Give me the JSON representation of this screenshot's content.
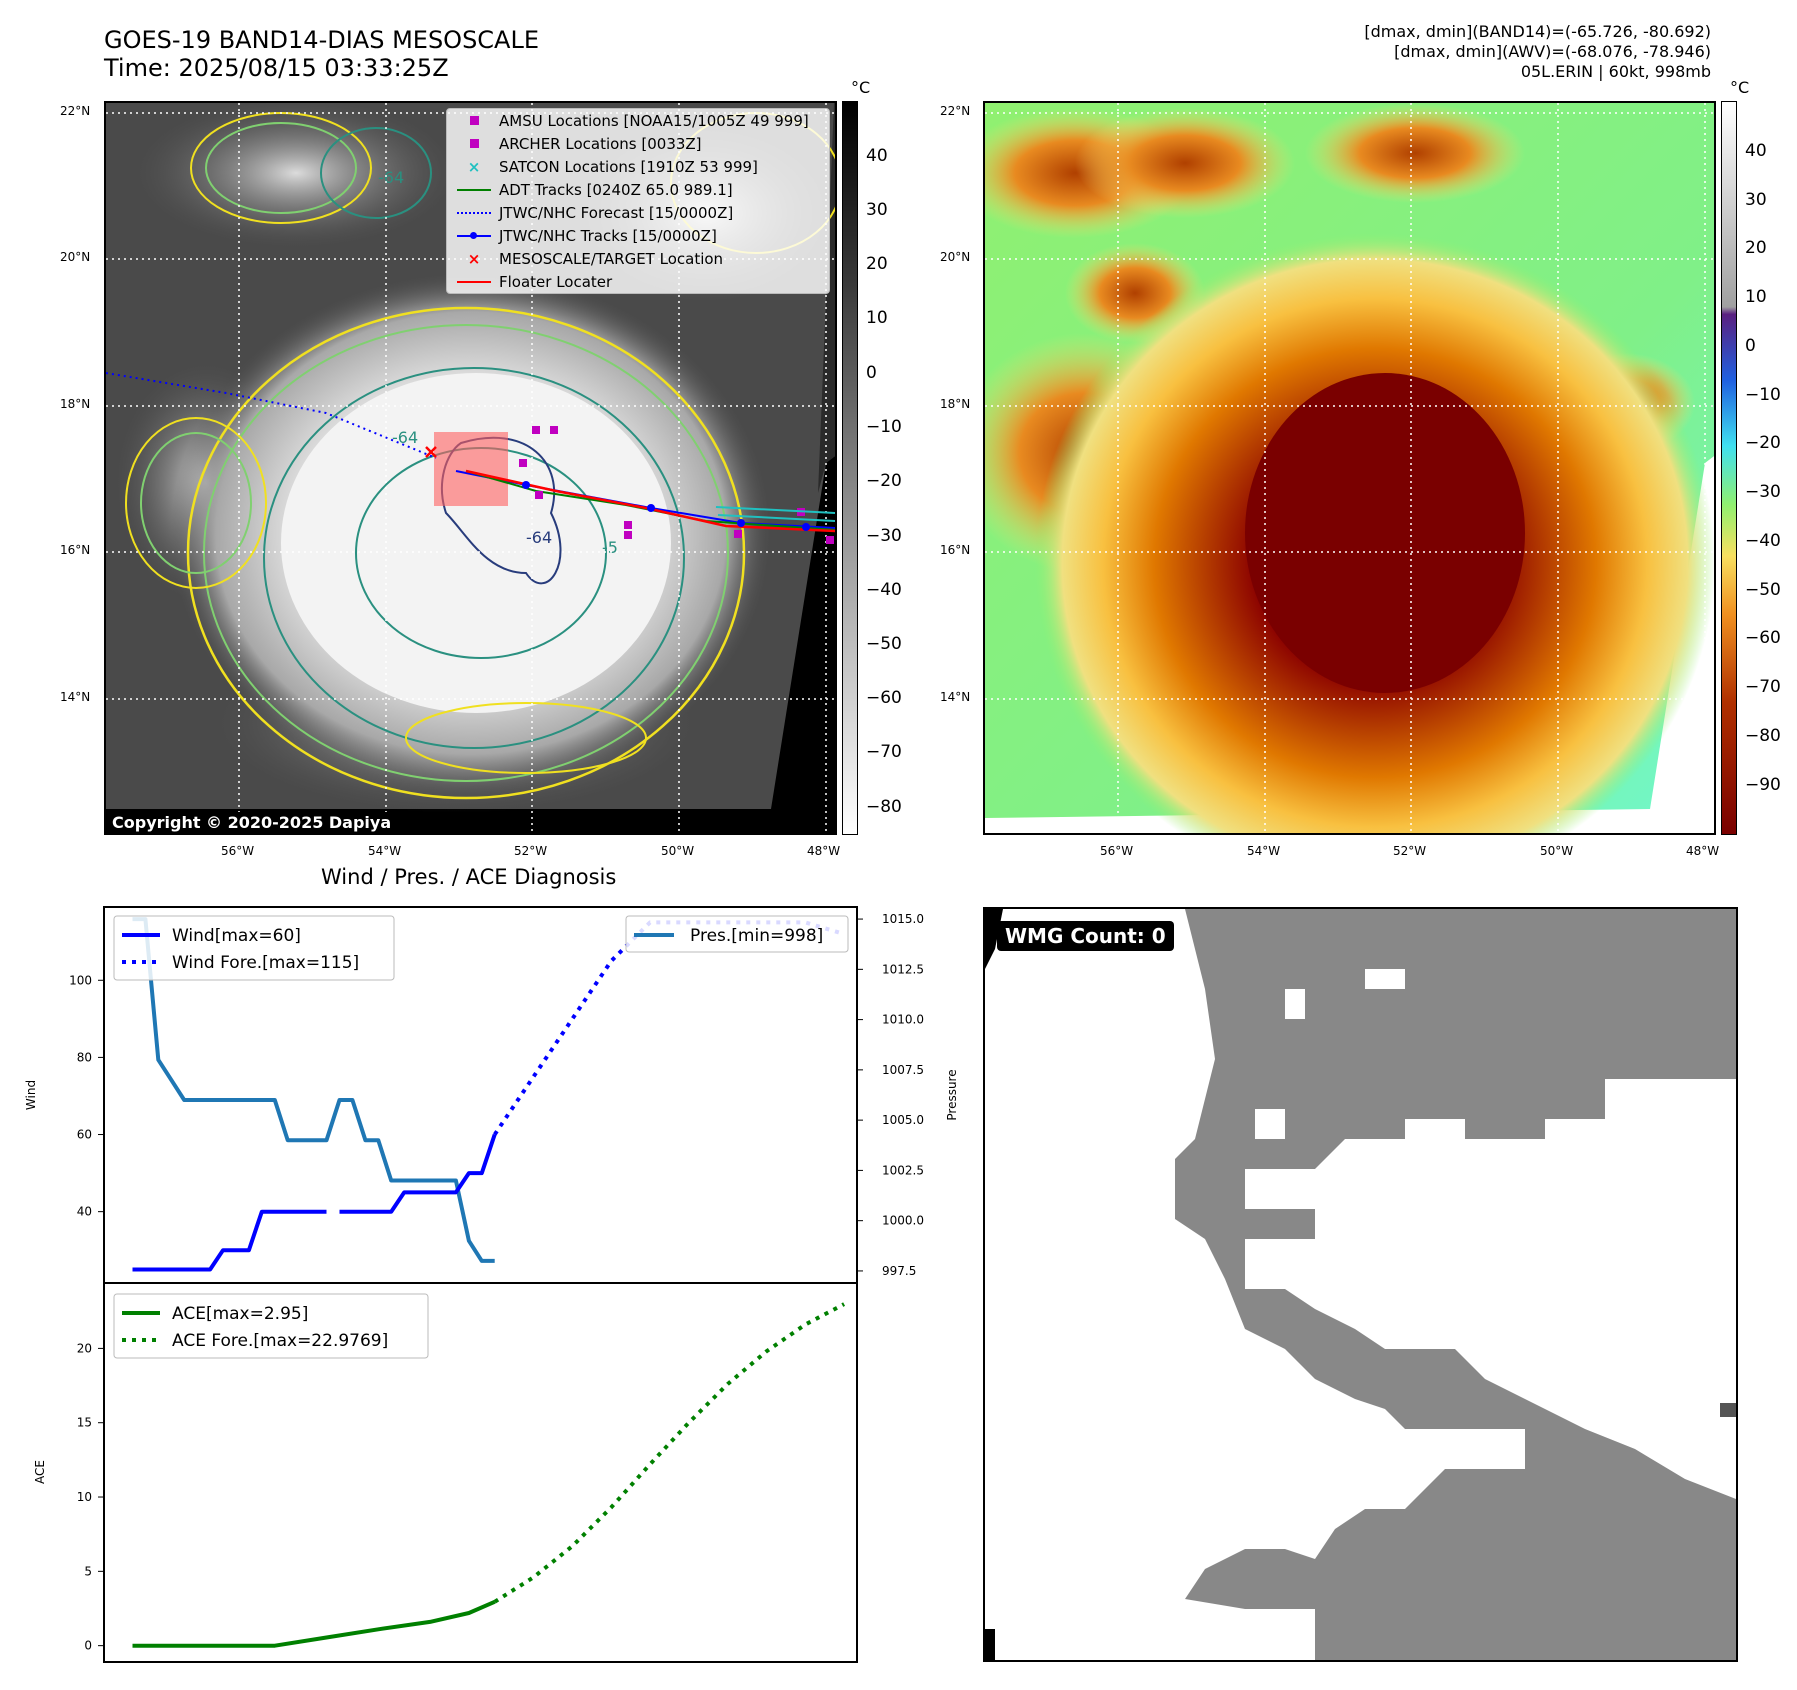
{
  "header": {
    "title_line1": "GOES-19 BAND14-DIAS MESOSCALE",
    "title_line2": "Time: 2025/08/15 03:33:25Z",
    "right_line1": "[dmax, dmin](BAND14)=(-65.726, -80.692)",
    "right_line2": "[dmax, dmin](AWV)=(-68.076, -78.946)",
    "right_line3": "05L.ERIN | 60kt, 998mb"
  },
  "maps": {
    "lat_labels": [
      "22°N",
      "20°N",
      "18°N",
      "16°N",
      "14°N"
    ],
    "lon_labels": [
      "56°W",
      "54°W",
      "52°W",
      "50°W",
      "48°W"
    ],
    "copyright": "Copyright © 2020-2025 Dapiya",
    "contour_labels": [
      "-64",
      "-64",
      "-64",
      "-5"
    ],
    "legend": [
      {
        "label": "AMSU Locations [NOAA15/1005Z 49 999]",
        "color": "#c000c0",
        "marker": "square"
      },
      {
        "label": "ARCHER Locations [0033Z]",
        "color": "#c000c0",
        "marker": "square"
      },
      {
        "label": "SATCON Locations [1910Z 53 999]",
        "color": "#20c0c0",
        "marker": "x"
      },
      {
        "label": "ADT Tracks [0240Z 65.0 989.1]",
        "color": "#008000",
        "marker": "line"
      },
      {
        "label": "JTWC/NHC Forecast [15/0000Z]",
        "color": "#0000ff",
        "marker": "dotted"
      },
      {
        "label": "JTWC/NHC Tracks [15/0000Z]",
        "color": "#0000ff",
        "marker": "line-dot"
      },
      {
        "label": "MESOSCALE/TARGET Location",
        "color": "#ff0000",
        "marker": "x"
      },
      {
        "label": "Floater Locater",
        "color": "#ff0000",
        "marker": "line"
      }
    ],
    "gray_cbar": {
      "unit": "°C",
      "ticks": [
        "40",
        "30",
        "20",
        "10",
        "0",
        "−10",
        "−20",
        "−30",
        "−40",
        "−50",
        "−60",
        "−70",
        "−80"
      ]
    },
    "color_cbar": {
      "unit": "°C",
      "ticks": [
        "40",
        "30",
        "20",
        "10",
        "0",
        "−10",
        "−20",
        "−30",
        "−40",
        "−50",
        "−60",
        "−70",
        "−80",
        "−90"
      ]
    }
  },
  "chart_data": [
    {
      "type": "line",
      "title": "Wind / Pres. / ACE Diagnosis",
      "ylabel": "Wind",
      "y2label": "Pressure",
      "ylim": [
        21.5,
        119
      ],
      "y2lim": [
        996.9,
        1015.6
      ],
      "yticks": [
        40,
        60,
        80,
        100
      ],
      "y2ticks": [
        "997.5",
        "1000.0",
        "1002.5",
        "1005.0",
        "1007.5",
        "1010.0",
        "1012.5",
        "1015.0"
      ],
      "series": [
        {
          "name": "Wind[max=60]",
          "axis": "left",
          "color": "#0000ff",
          "style": "solid",
          "x": [
            0,
            1,
            2,
            3,
            4,
            5,
            6,
            7,
            8,
            9,
            10,
            11,
            12,
            13,
            14,
            15
          ],
          "y": [
            25,
            25,
            25,
            25,
            25,
            25,
            25,
            30,
            30,
            30,
            40,
            40,
            40,
            40,
            40,
            40
          ]
        },
        {
          "name": "Wind[max=60] (cont.)",
          "axis": "left",
          "color": "#0000ff",
          "style": "solid",
          "x": [
            16,
            17,
            18,
            19,
            20,
            21,
            22,
            23,
            24,
            25,
            26,
            27,
            28
          ],
          "y": [
            40,
            40,
            40,
            40,
            40,
            45,
            45,
            45,
            45,
            45,
            50,
            50,
            60
          ]
        },
        {
          "name": "Wind Fore.[max=115]",
          "axis": "left",
          "color": "#0000ff",
          "style": "dotted",
          "x": [
            28,
            31,
            34,
            37,
            40,
            43,
            46,
            49,
            52,
            55
          ],
          "y": [
            60,
            75,
            90,
            105,
            115,
            115,
            115,
            115,
            115,
            112
          ]
        },
        {
          "name": "Pres.[min=998]",
          "axis": "right",
          "color": "#1f77b4",
          "style": "solid",
          "x": [
            0,
            1,
            2,
            3,
            4,
            5,
            6,
            7,
            8,
            9,
            10,
            11,
            12,
            13,
            14,
            15,
            16,
            17,
            18,
            19,
            20,
            21,
            22,
            23,
            24,
            25,
            26,
            27,
            28
          ],
          "y": [
            1015,
            1015,
            1008,
            1007,
            1006,
            1006,
            1006,
            1006,
            1006,
            1006,
            1006,
            1006,
            1004,
            1004,
            1004,
            1004,
            1006,
            1006,
            1004,
            1004,
            1002,
            1002,
            1002,
            1002,
            1002,
            1002,
            999,
            998,
            998
          ]
        }
      ],
      "xlim": [
        -2.2,
        56
      ]
    },
    {
      "type": "line",
      "ylabel": "ACE",
      "ylim": [
        -1.1,
        24.4
      ],
      "yticks": [
        0,
        5,
        10,
        15,
        20
      ],
      "series": [
        {
          "name": "ACE[max=2.95]",
          "color": "#008000",
          "style": "solid",
          "x": [
            0,
            4,
            8,
            11,
            15,
            19,
            23,
            26,
            28
          ],
          "y": [
            0,
            0,
            0,
            0,
            0.55,
            1.1,
            1.6,
            2.2,
            2.95
          ]
        },
        {
          "name": "ACE Fore.[max=22.9769]",
          "color": "#008000",
          "style": "dotted",
          "x": [
            28,
            31,
            34,
            37,
            40,
            43,
            46,
            49,
            52,
            55
          ],
          "y": [
            2.95,
            4.6,
            6.7,
            9.3,
            12.2,
            15.0,
            17.6,
            19.8,
            21.6,
            22.98
          ]
        }
      ],
      "xlim": [
        -2.2,
        56
      ]
    }
  ],
  "wmg": {
    "label": "WMG Count: 0"
  }
}
